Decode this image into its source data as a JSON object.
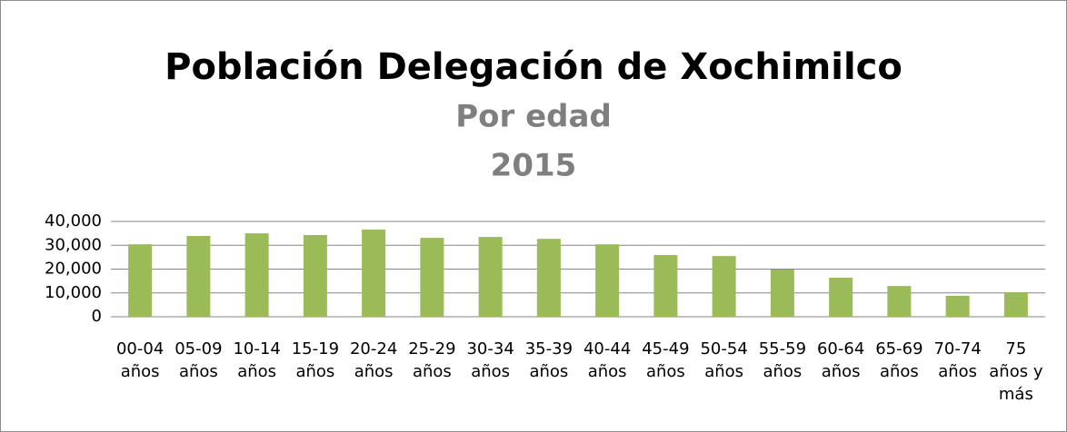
{
  "chart_data": {
    "type": "bar",
    "title": "Población Delegación de Xochimilco",
    "subtitle": "Por edad",
    "subtitle2": "2015",
    "categories": [
      "00-04 años",
      "05-09 años",
      "10-14 años",
      "15-19 años",
      "20-24 años",
      "25-29 años",
      "30-34 años",
      "35-39 años",
      "40-44 años",
      "45-49 años",
      "50-54 años",
      "55-59 años",
      "60-64 años",
      "65-69 años",
      "70-74 años",
      "75 años y más"
    ],
    "values": [
      30400,
      33900,
      35000,
      34300,
      36600,
      33100,
      33500,
      32700,
      30400,
      25900,
      25500,
      19800,
      16400,
      12900,
      8800,
      10300
    ],
    "color": "#9bbb59",
    "ylim": [
      0,
      40000
    ],
    "yticks": [
      0,
      {
        "value": 10000,
        "label": "10,000"
      },
      {
        "value": 20000,
        "label": "20,000"
      },
      {
        "value": 30000,
        "label": "30,000"
      },
      {
        "value": 40000,
        "label": "40,000"
      }
    ],
    "grid": true
  }
}
